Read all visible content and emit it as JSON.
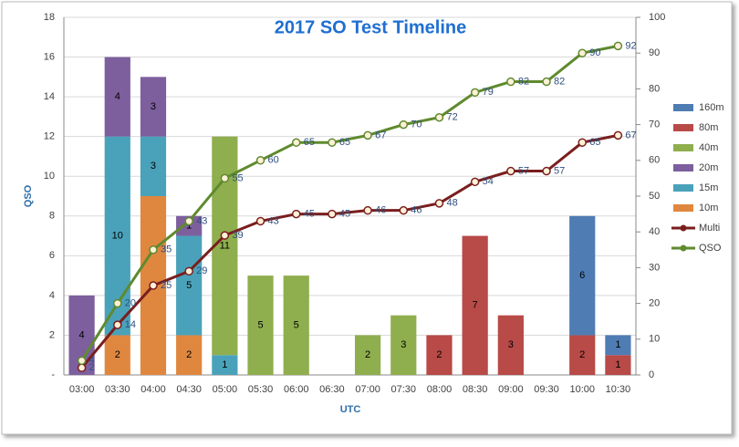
{
  "chart_data": {
    "type": "bar",
    "title": "2017 SO Test Timeline",
    "x_label": "UTC",
    "y_label": "QSO",
    "categories": [
      "03:00",
      "03:30",
      "04:00",
      "04:30",
      "05:00",
      "05:30",
      "06:00",
      "06:30",
      "07:00",
      "07:30",
      "08:00",
      "08:30",
      "09:00",
      "09:30",
      "10:00",
      "10:30"
    ],
    "stacked": true,
    "grid": true,
    "legend": "right",
    "ylim": [
      0,
      18
    ],
    "yticks": [
      {
        "value": 0,
        "label": "-"
      },
      2,
      4,
      6,
      8,
      10,
      12,
      14,
      16,
      18
    ],
    "y2lim": [
      0,
      100
    ],
    "y2ticks": [
      0,
      10,
      20,
      30,
      40,
      50,
      60,
      70,
      80,
      90,
      100
    ],
    "series": [
      {
        "name": "10m",
        "color": "#e0873f",
        "values": [
          null,
          2,
          9,
          2,
          null,
          null,
          null,
          null,
          null,
          null,
          null,
          null,
          null,
          null,
          null,
          null
        ]
      },
      {
        "name": "15m",
        "color": "#4aa2ba",
        "values": [
          null,
          10,
          3,
          5,
          1,
          null,
          null,
          null,
          null,
          null,
          null,
          null,
          null,
          null,
          null,
          null
        ]
      },
      {
        "name": "20m",
        "color": "#7d5f9e",
        "values": [
          4,
          4,
          3,
          1,
          null,
          null,
          null,
          null,
          null,
          null,
          null,
          null,
          null,
          null,
          null,
          null
        ]
      },
      {
        "name": "40m",
        "color": "#8fae4e",
        "values": [
          null,
          null,
          null,
          null,
          11,
          5,
          5,
          null,
          2,
          3,
          null,
          null,
          null,
          null,
          null,
          null
        ]
      },
      {
        "name": "80m",
        "color": "#b84a47",
        "values": [
          null,
          null,
          null,
          null,
          null,
          null,
          null,
          null,
          null,
          null,
          2,
          7,
          3,
          null,
          2,
          1
        ]
      },
      {
        "name": "160m",
        "color": "#4f7cb3",
        "values": [
          null,
          null,
          null,
          null,
          null,
          null,
          null,
          null,
          null,
          null,
          null,
          null,
          null,
          null,
          6,
          1
        ]
      },
      {
        "name": "Multi",
        "type": "line",
        "axis": "y2",
        "color": "#7a1e1e",
        "values": [
          2,
          14,
          25,
          29,
          39,
          43,
          45,
          45,
          46,
          46,
          48,
          54,
          57,
          57,
          65,
          67
        ]
      },
      {
        "name": "QSO",
        "type": "line",
        "axis": "y2",
        "color": "#5f8a2e",
        "values": [
          4,
          20,
          35,
          43,
          55,
          60,
          65,
          65,
          67,
          70,
          72,
          79,
          82,
          82,
          90,
          92
        ]
      }
    ]
  }
}
